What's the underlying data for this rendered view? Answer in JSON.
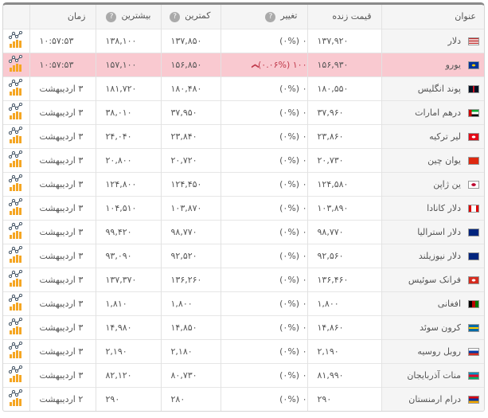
{
  "headers": {
    "title": "عنوان",
    "live": "قیمت زنده",
    "change": "تغییر",
    "min": "کمترین",
    "max": "بیشترین",
    "time": "زمان",
    "help": "?"
  },
  "colors": {
    "highlight": "#f9c9d0",
    "down": "#c0394b"
  },
  "rows": [
    {
      "title": "دلار",
      "flag": "us",
      "live": "۱۳۷,۹۲۰",
      "change": "۰ (۰%)",
      "min": "۱۳۷,۸۵۰",
      "max": "۱۳۸,۱۰۰",
      "time": "۱۰:۵۷:۵۳"
    },
    {
      "title": "یورو",
      "flag": "eu",
      "live": "۱۵۶,۹۳۰",
      "change": "۱۰۰ (۰.۰۶%)",
      "trend": "down",
      "min": "۱۵۶,۸۵۰",
      "max": "۱۵۷,۱۰۰",
      "time": "۱۰:۵۷:۵۳",
      "highlight": true
    },
    {
      "title": "پوند انگلیس",
      "flag": "gb",
      "live": "۱۸۰,۵۵۰",
      "change": "۰ (۰%)",
      "min": "۱۸۰,۴۸۰",
      "max": "۱۸۱,۷۲۰",
      "time": "۳ اردیبهشت"
    },
    {
      "title": "درهم امارات",
      "flag": "ae",
      "live": "۳۷,۹۶۰",
      "change": "۰ (۰%)",
      "min": "۳۷,۹۵۰",
      "max": "۳۸,۰۱۰",
      "time": "۳ اردیبهشت"
    },
    {
      "title": "لیر ترکیه",
      "flag": "tr",
      "live": "۲۳,۸۶۰",
      "change": "۰ (۰%)",
      "min": "۲۳,۸۴۰",
      "max": "۲۴,۰۴۰",
      "time": "۳ اردیبهشت"
    },
    {
      "title": "یوان چین",
      "flag": "cn",
      "live": "۲۰,۷۳۰",
      "change": "۰ (۰%)",
      "min": "۲۰,۷۲۰",
      "max": "۲۰,۸۰۰",
      "time": "۳ اردیبهشت"
    },
    {
      "title": "ین ژاپن",
      "flag": "jp",
      "live": "۱۲۴,۵۸۰",
      "change": "۰ (۰%)",
      "min": "۱۲۴,۴۵۰",
      "max": "۱۲۴,۸۰۰",
      "time": "۳ اردیبهشت"
    },
    {
      "title": "دلار کانادا",
      "flag": "ca",
      "live": "۱۰۳,۸۹۰",
      "change": "۰ (۰%)",
      "min": "۱۰۳,۸۷۰",
      "max": "۱۰۴,۵۱۰",
      "time": "۳ اردیبهشت"
    },
    {
      "title": "دلار استرالیا",
      "flag": "au",
      "live": "۹۸,۷۷۰",
      "change": "۰ (۰%)",
      "min": "۹۸,۷۷۰",
      "max": "۹۹,۴۲۰",
      "time": "۳ اردیبهشت"
    },
    {
      "title": "دلار نیوزیلند",
      "flag": "nz",
      "live": "۹۲,۵۶۰",
      "change": "۰ (۰%)",
      "min": "۹۲,۵۲۰",
      "max": "۹۳,۰۹۰",
      "time": "۳ اردیبهشت"
    },
    {
      "title": "فرانک سوئیس",
      "flag": "ch",
      "live": "۱۳۶,۴۶۰",
      "change": "۰ (۰%)",
      "min": "۱۳۶,۲۶۰",
      "max": "۱۳۷,۳۷۰",
      "time": "۳ اردیبهشت"
    },
    {
      "title": "افغانی",
      "flag": "af",
      "live": "۱,۸۰۰",
      "change": "۰ (۰%)",
      "min": "۱,۸۰۰",
      "max": "۱,۸۱۰",
      "time": "۳ اردیبهشت"
    },
    {
      "title": "کرون سوئد",
      "flag": "se",
      "live": "۱۴,۸۶۰",
      "change": "۰ (۰%)",
      "min": "۱۴,۸۵۰",
      "max": "۱۴,۹۸۰",
      "time": "۳ اردیبهشت"
    },
    {
      "title": "روبل روسیه",
      "flag": "ru",
      "live": "۲,۱۹۰",
      "change": "۰ (۰%)",
      "min": "۲,۱۸۰",
      "max": "۲,۱۹۰",
      "time": "۳ اردیبهشت"
    },
    {
      "title": "منات آذربایجان",
      "flag": "az",
      "live": "۸۱,۹۹۰",
      "change": "۰ (۰%)",
      "min": "۸۰,۷۳۰",
      "max": "۸۲,۱۲۰",
      "time": "۳ اردیبهشت"
    },
    {
      "title": "درام ارمنستان",
      "flag": "am",
      "live": "۲۹۰",
      "change": "۰ (۰%)",
      "min": "۲۸۰",
      "max": "۲۹۰",
      "time": "۲ اردیبهشت"
    }
  ]
}
